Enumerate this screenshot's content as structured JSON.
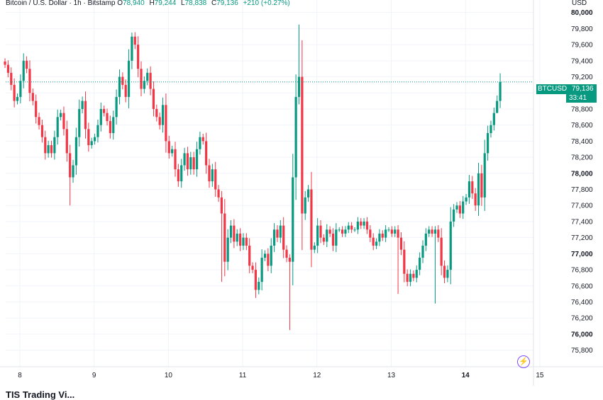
{
  "header": {
    "symbol": "Bitcoin / U.S. Dollar · 1h · Bitstamp",
    "o_label": "O",
    "o_value": "78,940",
    "h_label": "H",
    "h_value": "79,244",
    "l_label": "L",
    "l_value": "78,838",
    "c_label": "C",
    "c_value": "79,136",
    "change": "+210 (+0.27%)"
  },
  "currency": "USD",
  "badge": {
    "ticker": "BTCUSD",
    "price": "79,136",
    "countdown": "33:41"
  },
  "footer_text": "TIS Trading Vi...",
  "colors": {
    "up": "#089981",
    "down": "#f23645",
    "grid": "#f0f3fa"
  },
  "chart_data": {
    "type": "candlestick",
    "ylim": [
      75700,
      80050
    ],
    "y_ticks": [
      75800,
      76000,
      76200,
      76400,
      76600,
      76800,
      77000,
      77200,
      77400,
      77600,
      77800,
      78000,
      78200,
      78400,
      78600,
      78800,
      79000,
      79200,
      79400,
      79600,
      79800,
      80000
    ],
    "y_tick_labels": [
      "75,800",
      "76,000",
      "76,200",
      "76,400",
      "76,600",
      "76,800",
      "77,000",
      "77,200",
      "77,400",
      "77,600",
      "77,800",
      "78,000",
      "78,200",
      "78,400",
      "78,600",
      "78,800",
      "79,000",
      "79,200",
      "79,400",
      "79,600",
      "79,800",
      "80,000"
    ],
    "bold_ticks": [
      76000,
      77000,
      78000,
      79000,
      80000
    ],
    "x_labels": [
      {
        "day": 8,
        "label": "8"
      },
      {
        "day": 9,
        "label": "9"
      },
      {
        "day": 10,
        "label": "10"
      },
      {
        "day": 11,
        "label": "11"
      },
      {
        "day": 12,
        "label": "12"
      },
      {
        "day": 13,
        "label": "13"
      },
      {
        "day": 14,
        "label": "14"
      },
      {
        "day": 15,
        "label": "15"
      }
    ],
    "bold_x": [
      "14"
    ],
    "start_day": 7.8,
    "interval_hours": 1,
    "last_price": 79136,
    "closes": [
      79350,
      79250,
      79100,
      78900,
      78950,
      79150,
      79400,
      79300,
      79000,
      78900,
      78700,
      78600,
      78450,
      78250,
      78350,
      78250,
      78450,
      78700,
      78750,
      78550,
      78250,
      77950,
      78100,
      78450,
      78800,
      78900,
      78550,
      78350,
      78400,
      78450,
      78600,
      78800,
      78750,
      78650,
      78500,
      78700,
      78950,
      79200,
      79100,
      78950,
      79400,
      79700,
      79600,
      79300,
      79050,
      79150,
      79250,
      79050,
      78800,
      78700,
      78600,
      78850,
      78400,
      78250,
      78300,
      78050,
      77900,
      78100,
      78250,
      78050,
      78200,
      78050,
      78300,
      78450,
      78400,
      78100,
      77900,
      78050,
      77800,
      77700,
      77500,
      76900,
      77200,
      77350,
      77150,
      77250,
      77100,
      77200,
      77100,
      76850,
      76800,
      76550,
      76650,
      76950,
      77000,
      76850,
      77100,
      77300,
      77200,
      77350,
      77050,
      76950,
      76900,
      77950,
      78950,
      79200,
      77500,
      77700,
      77800,
      77050,
      77100,
      77350,
      77200,
      77150,
      77300,
      77250,
      77100,
      77300,
      77300,
      77250,
      77300,
      77350,
      77300,
      77300,
      77400,
      77350,
      77400,
      77300,
      77200,
      77100,
      77150,
      77250,
      77200,
      77300,
      77300,
      77250,
      77300,
      77200,
      77050,
      76750,
      76650,
      76750,
      76700,
      76800,
      76950,
      77100,
      77250,
      77300,
      77250,
      77300,
      77200,
      76850,
      76700,
      76800,
      77400,
      77550,
      77600,
      77500,
      77650,
      77700,
      77900,
      77750,
      77600,
      78000,
      77700,
      78250,
      78500,
      78600,
      78750,
      78900,
      79136
    ],
    "highs": [
      null,
      null,
      null,
      null,
      null,
      null,
      null,
      null,
      null,
      null,
      null,
      null,
      null,
      null,
      null,
      null,
      null,
      null,
      null,
      null,
      null,
      null,
      null,
      null,
      null,
      null,
      null,
      null,
      null,
      null,
      null,
      null,
      null,
      null,
      null,
      null,
      null,
      null,
      null,
      null,
      null,
      79750,
      null,
      null,
      null,
      null,
      null,
      null,
      null,
      null,
      null,
      null,
      null,
      null,
      null,
      null,
      null,
      null,
      null,
      null,
      null,
      null,
      null,
      null,
      null,
      null,
      null,
      null,
      null,
      null,
      null,
      null,
      null,
      null,
      null,
      null,
      null,
      null,
      null,
      null,
      null,
      null,
      null,
      null,
      null,
      null,
      null,
      null,
      null,
      null,
      null,
      null,
      null,
      null,
      null,
      79850,
      null,
      null,
      null,
      null,
      null,
      null,
      null,
      null,
      null,
      null,
      null,
      null,
      null,
      null,
      null,
      null,
      null,
      null,
      null,
      null,
      null,
      null,
      null,
      null,
      null,
      null,
      null,
      null,
      null,
      null,
      null,
      null,
      null,
      null,
      null,
      null,
      null,
      null,
      null,
      null,
      null,
      null,
      null,
      null,
      null,
      null,
      null,
      null,
      null,
      null,
      null,
      null,
      null,
      null,
      null,
      null,
      null,
      null,
      null,
      null,
      null,
      null,
      null,
      null,
      79244
    ],
    "lows": [
      null,
      null,
      null,
      null,
      null,
      null,
      null,
      null,
      null,
      null,
      null,
      null,
      null,
      null,
      null,
      null,
      null,
      null,
      null,
      null,
      null,
      77600,
      null,
      null,
      null,
      null,
      null,
      null,
      null,
      null,
      null,
      null,
      null,
      null,
      null,
      null,
      null,
      null,
      null,
      null,
      null,
      null,
      null,
      null,
      null,
      null,
      null,
      null,
      null,
      null,
      null,
      null,
      null,
      null,
      null,
      null,
      null,
      null,
      null,
      null,
      null,
      null,
      null,
      null,
      null,
      null,
      null,
      null,
      null,
      null,
      76650,
      null,
      null,
      null,
      null,
      null,
      null,
      null,
      null,
      null,
      null,
      76450,
      null,
      null,
      null,
      null,
      null,
      null,
      null,
      null,
      null,
      null,
      76050,
      null,
      null,
      null,
      null,
      null,
      null,
      null,
      null,
      null,
      null,
      null,
      null,
      null,
      null,
      null,
      null,
      null,
      null,
      null,
      null,
      null,
      null,
      null,
      null,
      null,
      null,
      null,
      null,
      null,
      null,
      null,
      null,
      null,
      null,
      76500,
      null,
      null,
      null,
      null,
      null,
      null,
      null,
      null,
      null,
      null,
      null,
      76380,
      null,
      null,
      null,
      null,
      null,
      null,
      null,
      null,
      null,
      null,
      null,
      null,
      null,
      null,
      null,
      null,
      null,
      null,
      null,
      78838
    ]
  }
}
